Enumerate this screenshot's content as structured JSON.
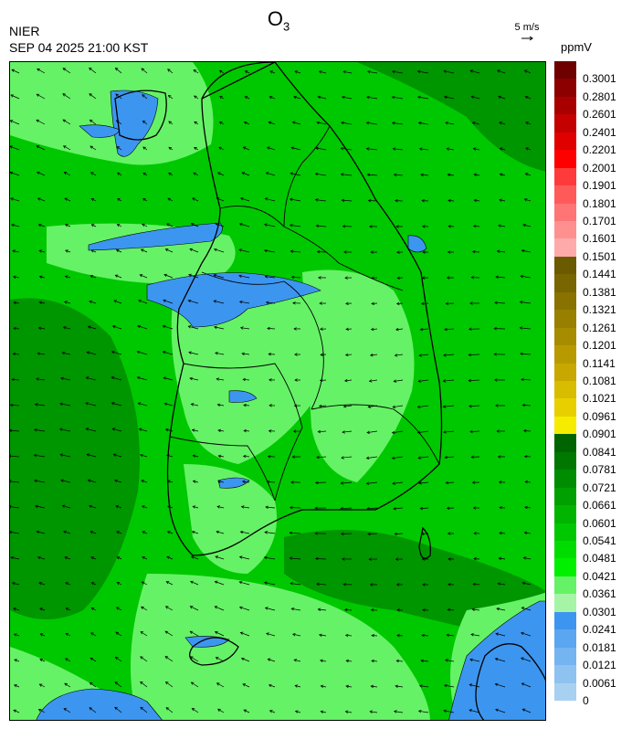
{
  "header": {
    "source": "NIER",
    "timestamp": "SEP 04 2025 21:00 KST",
    "title_main": "O",
    "title_sub": "3",
    "wind_reference": "5 m/s",
    "unit": "ppmV"
  },
  "legend": {
    "levels": [
      {
        "label": "0.3001",
        "color": "#6e0000"
      },
      {
        "label": "0.2801",
        "color": "#8c0000"
      },
      {
        "label": "0.2601",
        "color": "#a80000"
      },
      {
        "label": "0.2401",
        "color": "#c40000"
      },
      {
        "label": "0.2201",
        "color": "#e00000"
      },
      {
        "label": "0.2001",
        "color": "#ff0000"
      },
      {
        "label": "0.1901",
        "color": "#ff3a3a"
      },
      {
        "label": "0.1801",
        "color": "#ff5a5a"
      },
      {
        "label": "0.1701",
        "color": "#ff7474"
      },
      {
        "label": "0.1601",
        "color": "#ff9090"
      },
      {
        "label": "0.1501",
        "color": "#ffaaaa"
      },
      {
        "label": "0.1441",
        "color": "#6b5a00"
      },
      {
        "label": "0.1381",
        "color": "#7a6600"
      },
      {
        "label": "0.1321",
        "color": "#897200"
      },
      {
        "label": "0.1261",
        "color": "#987f00"
      },
      {
        "label": "0.1201",
        "color": "#a88c00"
      },
      {
        "label": "0.1141",
        "color": "#b89a00"
      },
      {
        "label": "0.1081",
        "color": "#c8a800"
      },
      {
        "label": "0.1021",
        "color": "#d8bc00"
      },
      {
        "label": "0.0961",
        "color": "#e8d000"
      },
      {
        "label": "0.0901",
        "color": "#f5ec00"
      },
      {
        "label": "0.0841",
        "color": "#006400"
      },
      {
        "label": "0.0781",
        "color": "#007800"
      },
      {
        "label": "0.0721",
        "color": "#008c00"
      },
      {
        "label": "0.0661",
        "color": "#00a000"
      },
      {
        "label": "0.0601",
        "color": "#00b400"
      },
      {
        "label": "0.0541",
        "color": "#00c800"
      },
      {
        "label": "0.0481",
        "color": "#00dc00"
      },
      {
        "label": "0.0421",
        "color": "#00f000"
      },
      {
        "label": "0.0361",
        "color": "#66f266"
      },
      {
        "label": "0.0301",
        "color": "#a6f5a6"
      },
      {
        "label": "0.0241",
        "color": "#3c96f0"
      },
      {
        "label": "0.0181",
        "color": "#5aa6f0"
      },
      {
        "label": "0.0121",
        "color": "#74b4f0"
      },
      {
        "label": "0.0061",
        "color": "#8ec2f0"
      },
      {
        "label": "0",
        "color": "#a8d0f0"
      }
    ]
  },
  "map": {
    "background_color": "#00c800",
    "low_color": "#3c96f0",
    "high_color": "#009600",
    "light_color": "#66f266"
  }
}
